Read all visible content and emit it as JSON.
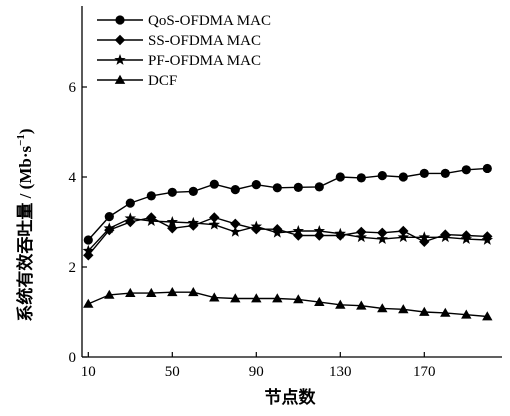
{
  "chart_data": {
    "type": "line",
    "xlabel": "节点数",
    "ylabel": "系统有效吞吐量 / (Mb·s",
    "ylabel_exp": "−1",
    "ylabel_close": ")",
    "xlim": [
      7,
      207
    ],
    "ylim": [
      0,
      7.8
    ],
    "xticks": [
      10,
      50,
      90,
      130,
      170
    ],
    "yticks": [
      0,
      2,
      4,
      6
    ],
    "grid": false,
    "legend_position": "top-left",
    "x": [
      10,
      20,
      30,
      40,
      50,
      60,
      70,
      80,
      90,
      100,
      110,
      120,
      130,
      140,
      150,
      160,
      170,
      180,
      190,
      200
    ],
    "series": [
      {
        "name": "QoS-OFDMA MAC",
        "marker": "circle",
        "values": [
          2.6,
          3.12,
          3.42,
          3.58,
          3.66,
          3.68,
          3.84,
          3.72,
          3.83,
          3.76,
          3.77,
          3.78,
          4.0,
          3.98,
          4.03,
          4.0,
          4.08,
          4.08,
          4.16,
          4.19
        ]
      },
      {
        "name": "SS-OFDMA MAC",
        "marker": "diamond",
        "values": [
          2.26,
          2.82,
          3.0,
          3.1,
          2.86,
          2.92,
          3.1,
          2.96,
          2.84,
          2.84,
          2.7,
          2.7,
          2.7,
          2.78,
          2.76,
          2.8,
          2.56,
          2.72,
          2.7,
          2.68
        ]
      },
      {
        "name": "PF-OFDMA MAC",
        "marker": "star",
        "values": [
          2.36,
          2.86,
          3.08,
          3.02,
          3.0,
          2.98,
          2.94,
          2.78,
          2.9,
          2.76,
          2.8,
          2.8,
          2.74,
          2.66,
          2.62,
          2.66,
          2.66,
          2.66,
          2.62,
          2.6
        ]
      },
      {
        "name": "DCF",
        "marker": "triangle",
        "values": [
          1.18,
          1.38,
          1.42,
          1.42,
          1.44,
          1.44,
          1.32,
          1.3,
          1.3,
          1.3,
          1.28,
          1.22,
          1.16,
          1.14,
          1.08,
          1.06,
          1.0,
          0.98,
          0.94,
          0.9
        ]
      }
    ]
  }
}
